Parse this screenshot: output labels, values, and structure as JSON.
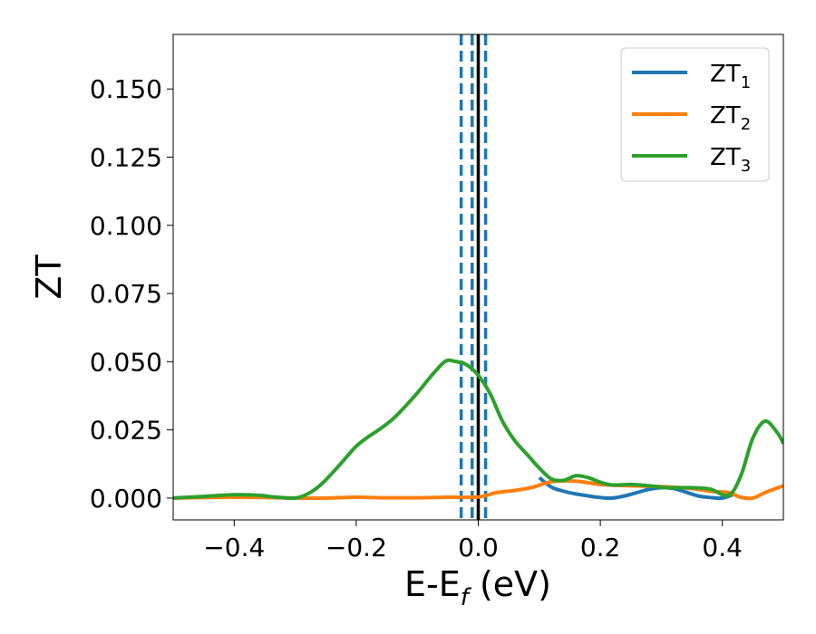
{
  "chart_data": {
    "type": "line",
    "xlabel": "E-E",
    "xlabel_sub": "f",
    "xlabel_unit": " (eV)",
    "ylabel": "ZT",
    "xlim": [
      -0.5,
      0.5
    ],
    "ylim": [
      -0.008,
      0.17
    ],
    "xticks": [
      -0.4,
      -0.2,
      0.0,
      0.2,
      0.4
    ],
    "xtick_labels": [
      "−0.4",
      "−0.2",
      "0.0",
      "0.2",
      "0.4"
    ],
    "yticks": [
      0.0,
      0.025,
      0.05,
      0.075,
      0.1,
      0.125,
      0.15
    ],
    "ytick_labels": [
      "0.000",
      "0.025",
      "0.050",
      "0.075",
      "0.100",
      "0.125",
      "0.150"
    ],
    "grid": false,
    "legend_position": "top-right",
    "vertical_lines": [
      {
        "x": -0.028,
        "style": "dashed",
        "color": "#1f77b4"
      },
      {
        "x": -0.01,
        "style": "dashed",
        "color": "#1f77b4"
      },
      {
        "x": 0.0,
        "style": "solid",
        "color": "#000000"
      },
      {
        "x": 0.012,
        "style": "dashed",
        "color": "#1f77b4"
      }
    ],
    "series": [
      {
        "name": "ZT",
        "name_sub": "1",
        "color": "#1f77b4",
        "x": [
          0.1,
          0.12,
          0.14,
          0.16,
          0.18,
          0.2,
          0.22,
          0.24,
          0.26,
          0.28,
          0.3,
          0.32,
          0.34,
          0.36,
          0.38,
          0.4,
          0.42
        ],
        "y": [
          0.0075,
          0.004,
          0.0025,
          0.0015,
          0.0008,
          0.0002,
          0.0,
          0.0008,
          0.002,
          0.0032,
          0.0038,
          0.0035,
          0.0022,
          0.0008,
          0.0002,
          0.0,
          0.0015
        ]
      },
      {
        "name": "ZT",
        "name_sub": "2",
        "color": "#ff7f0e",
        "x": [
          -0.5,
          -0.45,
          -0.4,
          -0.35,
          -0.3,
          -0.25,
          -0.2,
          -0.15,
          -0.1,
          -0.05,
          0.0,
          0.03,
          0.06,
          0.09,
          0.12,
          0.16,
          0.2,
          0.25,
          0.3,
          0.35,
          0.38,
          0.41,
          0.43,
          0.45,
          0.47,
          0.5
        ],
        "y": [
          0.0,
          0.0002,
          0.0003,
          0.0002,
          0.0,
          0.0,
          0.0003,
          0.0001,
          0.0001,
          0.0003,
          0.0004,
          0.002,
          0.0028,
          0.004,
          0.006,
          0.0062,
          0.005,
          0.0045,
          0.0042,
          0.0035,
          0.0025,
          0.002,
          0.0003,
          0.0,
          0.002,
          0.0045
        ]
      },
      {
        "name": "ZT",
        "name_sub": "3",
        "color": "#2ca02c",
        "x": [
          -0.5,
          -0.45,
          -0.4,
          -0.36,
          -0.33,
          -0.3,
          -0.28,
          -0.26,
          -0.24,
          -0.22,
          -0.2,
          -0.18,
          -0.16,
          -0.14,
          -0.12,
          -0.1,
          -0.08,
          -0.06,
          -0.05,
          -0.04,
          -0.02,
          0.0,
          0.02,
          0.04,
          0.06,
          0.08,
          0.1,
          0.12,
          0.14,
          0.16,
          0.18,
          0.2,
          0.22,
          0.25,
          0.28,
          0.31,
          0.35,
          0.38,
          0.41,
          0.43,
          0.45,
          0.47,
          0.49,
          0.5
        ],
        "y": [
          0.0,
          0.0006,
          0.0012,
          0.001,
          0.0003,
          0.0,
          0.0015,
          0.0045,
          0.009,
          0.014,
          0.019,
          0.0225,
          0.0255,
          0.029,
          0.0335,
          0.0385,
          0.044,
          0.049,
          0.0505,
          0.0502,
          0.049,
          0.045,
          0.038,
          0.028,
          0.021,
          0.016,
          0.011,
          0.007,
          0.0065,
          0.0082,
          0.0075,
          0.0058,
          0.0048,
          0.005,
          0.0045,
          0.0038,
          0.0038,
          0.0033,
          0.001,
          0.008,
          0.022,
          0.0282,
          0.024,
          0.02
        ]
      }
    ]
  }
}
